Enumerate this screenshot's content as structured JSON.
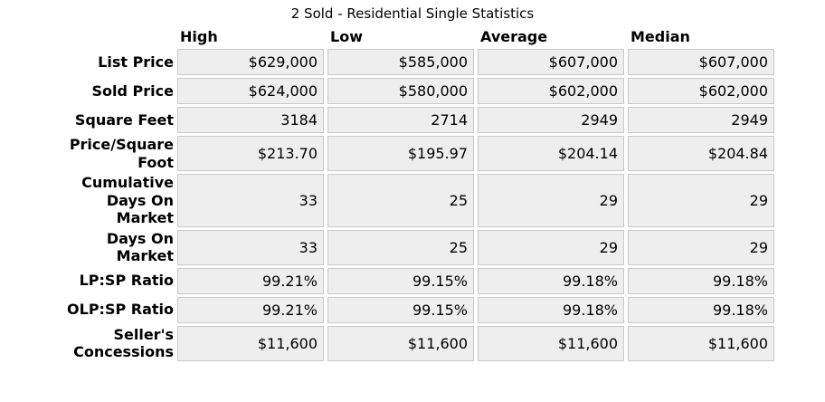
{
  "title": "2 Sold - Residential Single Statistics",
  "colors": {
    "page_bg": "#ffffff",
    "text": "#000000",
    "cell_bg": "#eeeeee",
    "cell_border": "#c8c8c8"
  },
  "chart_data": {
    "type": "table",
    "title": "2 Sold - Residential Single Statistics",
    "columns": [
      "High",
      "Low",
      "Average",
      "Median"
    ],
    "rows": [
      {
        "label": "List Price",
        "values": [
          "$629,000",
          "$585,000",
          "$607,000",
          "$607,000"
        ]
      },
      {
        "label": "Sold Price",
        "values": [
          "$624,000",
          "$580,000",
          "$602,000",
          "$602,000"
        ]
      },
      {
        "label": "Square Feet",
        "values": [
          "3184",
          "2714",
          "2949",
          "2949"
        ]
      },
      {
        "label": "Price/Square\nFoot",
        "values": [
          "$213.70",
          "$195.97",
          "$204.14",
          "$204.84"
        ]
      },
      {
        "label": "Cumulative\nDays On\nMarket",
        "values": [
          "33",
          "25",
          "29",
          "29"
        ]
      },
      {
        "label": "Days On\nMarket",
        "values": [
          "33",
          "25",
          "29",
          "29"
        ]
      },
      {
        "label": "LP:SP Ratio",
        "values": [
          "99.21%",
          "99.15%",
          "99.18%",
          "99.18%"
        ]
      },
      {
        "label": "OLP:SP Ratio",
        "values": [
          "99.21%",
          "99.15%",
          "99.18%",
          "99.18%"
        ]
      },
      {
        "label": "Seller's\nConcessions",
        "values": [
          "$11,600",
          "$11,600",
          "$11,600",
          "$11,600"
        ]
      }
    ]
  }
}
